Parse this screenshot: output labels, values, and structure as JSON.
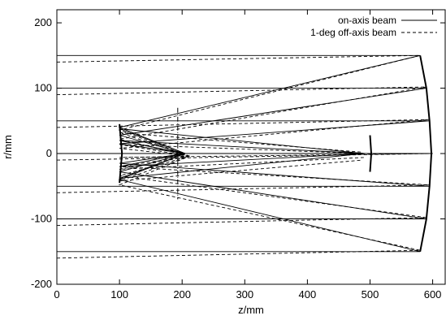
{
  "chart_data": {
    "type": "line",
    "title": "",
    "xlabel": "z/mm",
    "ylabel": "r/mm",
    "xlim": [
      0,
      620
    ],
    "ylim": [
      -200,
      220
    ],
    "x_ticks": [
      0,
      100,
      200,
      300,
      400,
      500,
      600
    ],
    "y_ticks": [
      -200,
      -100,
      0,
      100,
      200
    ],
    "grid": false,
    "legend_position": "top-right",
    "series": [
      {
        "name": "on-axis beam",
        "style": "solid",
        "color": "#000000",
        "rays": [
          [
            [
              0,
              150
            ],
            [
              580,
              150
            ],
            [
              100,
              40
            ],
            [
              205,
              0
            ]
          ],
          [
            [
              0,
              100
            ],
            [
              590,
              100
            ],
            [
              100,
              28
            ],
            [
              205,
              0
            ]
          ],
          [
            [
              0,
              50
            ],
            [
              595,
              50
            ],
            [
              100,
              15
            ],
            [
              205,
              0
            ]
          ],
          [
            [
              0,
              0
            ],
            [
              600,
              0
            ],
            [
              104,
              0
            ]
          ],
          [
            [
              0,
              -50
            ],
            [
              595,
              -50
            ],
            [
              100,
              -15
            ],
            [
              205,
              0
            ]
          ],
          [
            [
              0,
              -100
            ],
            [
              590,
              -100
            ],
            [
              100,
              -28
            ],
            [
              205,
              0
            ]
          ],
          [
            [
              0,
              -150
            ],
            [
              580,
              -150
            ],
            [
              100,
              -40
            ],
            [
              205,
              0
            ]
          ],
          [
            [
              205,
              0
            ],
            [
              100,
              38
            ],
            [
              490,
              0
            ]
          ],
          [
            [
              205,
              0
            ],
            [
              100,
              20
            ],
            [
              492,
              0
            ]
          ],
          [
            [
              205,
              0
            ],
            [
              100,
              -20
            ],
            [
              492,
              0
            ]
          ],
          [
            [
              205,
              0
            ],
            [
              100,
              -38
            ],
            [
              490,
              0
            ]
          ]
        ]
      },
      {
        "name": "1-deg off-axis beam",
        "style": "dashed",
        "color": "#000000",
        "rays": [
          [
            [
              0,
              140
            ],
            [
              580,
              150
            ],
            [
              100,
              36
            ],
            [
              212,
              -4
            ]
          ],
          [
            [
              0,
              90
            ],
            [
              590,
              102
            ],
            [
              100,
              22
            ],
            [
              212,
              -4
            ]
          ],
          [
            [
              0,
              40
            ],
            [
              595,
              52
            ],
            [
              100,
              8
            ],
            [
              212,
              -4
            ]
          ],
          [
            [
              0,
              -10
            ],
            [
              600,
              0
            ],
            [
              100,
              -6
            ],
            [
              212,
              -4
            ]
          ],
          [
            [
              0,
              -60
            ],
            [
              595,
              -48
            ],
            [
              100,
              -20
            ],
            [
              212,
              -4
            ]
          ],
          [
            [
              0,
              -110
            ],
            [
              590,
              -98
            ],
            [
              100,
              -34
            ],
            [
              212,
              -4
            ]
          ],
          [
            [
              0,
              -160
            ],
            [
              580,
              -148
            ],
            [
              100,
              -48
            ],
            [
              212,
              -4
            ]
          ],
          [
            [
              212,
              -4
            ],
            [
              100,
              32
            ],
            [
              488,
              2
            ]
          ],
          [
            [
              212,
              -4
            ],
            [
              100,
              14
            ],
            [
              490,
              0
            ]
          ],
          [
            [
              212,
              -4
            ],
            [
              100,
              -24
            ],
            [
              490,
              -6
            ]
          ],
          [
            [
              212,
              -4
            ],
            [
              100,
              -42
            ],
            [
              488,
              -10
            ]
          ]
        ]
      }
    ],
    "optical_elements": [
      {
        "name": "primary-mirror",
        "style": "thick",
        "points": [
          [
            580,
            150
          ],
          [
            590,
            100
          ],
          [
            595,
            50
          ],
          [
            598,
            0
          ],
          [
            595,
            -50
          ],
          [
            590,
            -100
          ],
          [
            580,
            -150
          ]
        ]
      },
      {
        "name": "secondary-mirror",
        "style": "thick",
        "points": [
          [
            100,
            45
          ],
          [
            104,
            0
          ],
          [
            100,
            -45
          ]
        ]
      },
      {
        "name": "stop",
        "style": "dash-dot",
        "points": [
          [
            193,
            70
          ],
          [
            193,
            -70
          ]
        ]
      },
      {
        "name": "detector",
        "style": "thick",
        "points": [
          [
            500,
            28
          ],
          [
            502,
            0
          ],
          [
            500,
            -28
          ]
        ]
      }
    ]
  }
}
